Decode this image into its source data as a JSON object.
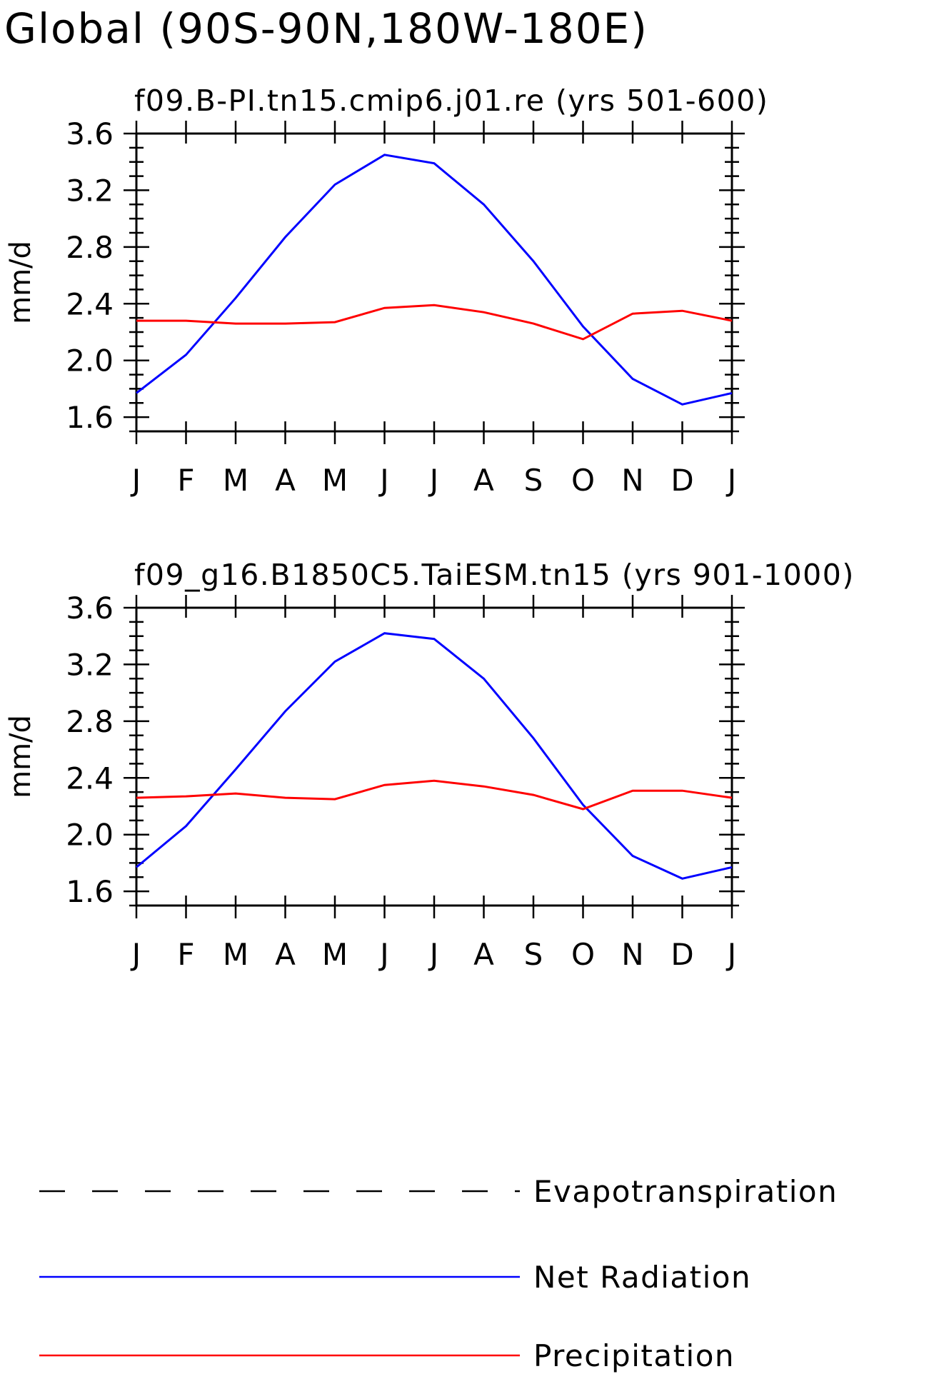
{
  "figure": {
    "title": "Global (90S-90N,180W-180E)",
    "legend": [
      {
        "label": "Evapotranspiration",
        "color": "#000000",
        "dash": "dashed"
      },
      {
        "label": "Net Radiation",
        "color": "#0000ff",
        "dash": "solid"
      },
      {
        "label": "Precipitation",
        "color": "#ff0000",
        "dash": "solid"
      }
    ]
  },
  "chart_data": [
    {
      "type": "line",
      "title": "f09.B-PI.tn15.cmip6.j01.re (yrs 501-600)",
      "xlabel": "",
      "ylabel": "mm/d",
      "ylim": [
        1.5,
        3.6
      ],
      "yticks": [
        "1.6",
        "2.0",
        "2.4",
        "2.8",
        "3.2",
        "3.6"
      ],
      "categories": [
        "J",
        "F",
        "M",
        "A",
        "M",
        "J",
        "J",
        "A",
        "S",
        "O",
        "N",
        "D",
        "J"
      ],
      "series": [
        {
          "name": "Net Radiation",
          "color": "#0000ff",
          "values": [
            1.77,
            2.04,
            2.44,
            2.87,
            3.24,
            3.45,
            3.39,
            3.1,
            2.7,
            2.24,
            1.87,
            1.69,
            1.77
          ]
        },
        {
          "name": "Precipitation",
          "color": "#ff0000",
          "values": [
            2.28,
            2.28,
            2.26,
            2.26,
            2.27,
            2.37,
            2.39,
            2.34,
            2.26,
            2.15,
            2.33,
            2.35,
            2.28
          ]
        }
      ]
    },
    {
      "type": "line",
      "title": "f09_g16.B1850C5.TaiESM.tn15 (yrs 901-1000)",
      "xlabel": "",
      "ylabel": "mm/d",
      "ylim": [
        1.5,
        3.6
      ],
      "yticks": [
        "1.6",
        "2.0",
        "2.4",
        "2.8",
        "3.2",
        "3.6"
      ],
      "categories": [
        "J",
        "F",
        "M",
        "A",
        "M",
        "J",
        "J",
        "A",
        "S",
        "O",
        "N",
        "D",
        "J"
      ],
      "series": [
        {
          "name": "Net Radiation",
          "color": "#0000ff",
          "values": [
            1.77,
            2.06,
            2.46,
            2.87,
            3.22,
            3.42,
            3.38,
            3.1,
            2.68,
            2.21,
            1.85,
            1.69,
            1.77
          ]
        },
        {
          "name": "Precipitation",
          "color": "#ff0000",
          "values": [
            2.26,
            2.27,
            2.29,
            2.26,
            2.25,
            2.35,
            2.38,
            2.34,
            2.28,
            2.18,
            2.31,
            2.31,
            2.26
          ]
        }
      ]
    }
  ]
}
